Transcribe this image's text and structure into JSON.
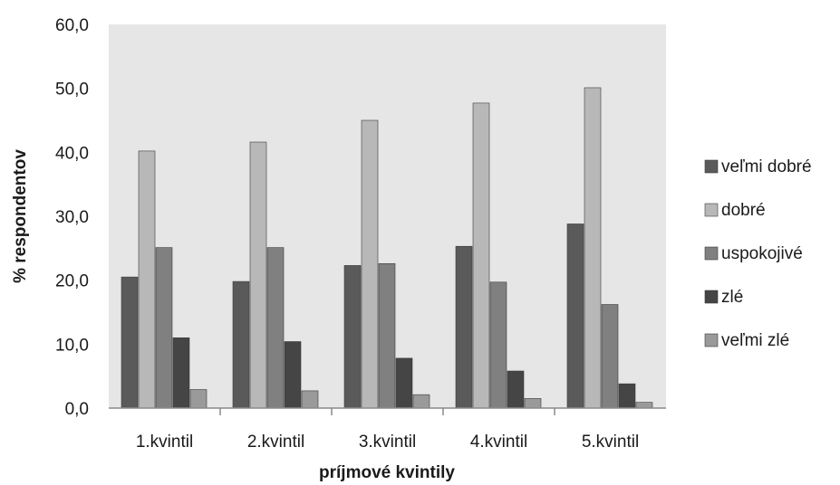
{
  "chart_data": {
    "type": "bar",
    "title": "",
    "xlabel": "príjmové kvintily",
    "ylabel": "% respondentov",
    "ylim": [
      0,
      60
    ],
    "y_ticks": [
      "0,0",
      "10,0",
      "20,0",
      "30,0",
      "40,0",
      "50,0",
      "60,0"
    ],
    "categories": [
      "1.kvintil",
      "2.kvintil",
      "3.kvintil",
      "4.kvintil",
      "5.kvintil"
    ],
    "series": [
      {
        "name": "veľmi dobré",
        "color": "#5a5a5a",
        "values": [
          20.5,
          19.8,
          22.3,
          25.3,
          28.8
        ]
      },
      {
        "name": "dobré",
        "color": "#b8b8b8",
        "values": [
          40.2,
          41.6,
          45.0,
          47.7,
          50.1
        ]
      },
      {
        "name": "uspokojivé",
        "color": "#808080",
        "values": [
          25.1,
          25.1,
          22.6,
          19.7,
          16.2
        ]
      },
      {
        "name": "zlé",
        "color": "#454545",
        "values": [
          11.0,
          10.4,
          7.8,
          5.8,
          3.8
        ]
      },
      {
        "name": "veľmi zlé",
        "color": "#9a9a9a",
        "values": [
          2.9,
          2.7,
          2.1,
          1.5,
          0.9
        ]
      }
    ],
    "grid": false,
    "legend_position": "right",
    "plot_background": "#e6e6e6"
  }
}
